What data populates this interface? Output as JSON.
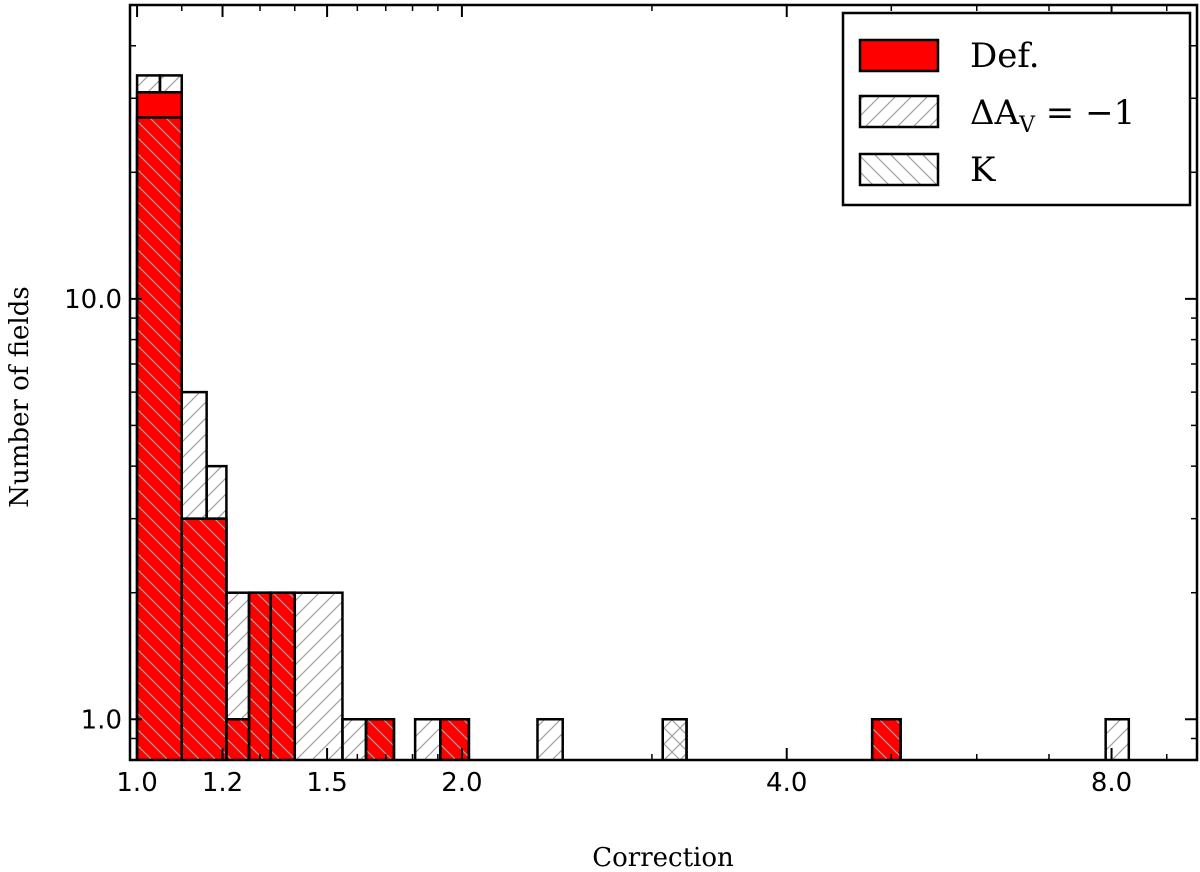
{
  "chart_data": {
    "type": "histogram",
    "xlabel": "Correction",
    "ylabel": "Number of fields",
    "x_scale": "log",
    "y_scale": "log",
    "xlim": [
      0.985,
      9.6
    ],
    "ylim": [
      0.8,
      50
    ],
    "x_ticks": [
      {
        "value": 1.0,
        "label": "1.0"
      },
      {
        "value": 1.2,
        "label": "1.2"
      },
      {
        "value": 1.5,
        "label": "1.5"
      },
      {
        "value": 2.0,
        "label": "2.0"
      },
      {
        "value": 4.0,
        "label": "4.0"
      },
      {
        "value": 8.0,
        "label": "8.0"
      }
    ],
    "y_ticks": [
      {
        "value": 1.0,
        "label": "1.0"
      },
      {
        "value": 10.0,
        "label": "10.0"
      }
    ],
    "legend": {
      "position": "top-right"
    },
    "series": [
      {
        "name": "Def.",
        "style": "filled",
        "color": "#ff0000",
        "bins": [
          {
            "x0": 1.0,
            "x1": 1.1,
            "count": 31
          },
          {
            "x0": 1.1,
            "x1": 1.21,
            "count": 3
          },
          {
            "x0": 1.21,
            "x1": 1.27,
            "count": 1
          },
          {
            "x0": 1.27,
            "x1": 1.33,
            "count": 2
          },
          {
            "x0": 1.33,
            "x1": 1.4,
            "count": 2
          },
          {
            "x0": 1.63,
            "x1": 1.73,
            "count": 1
          },
          {
            "x0": 1.91,
            "x1": 2.03,
            "count": 1
          },
          {
            "x0": 4.8,
            "x1": 5.1,
            "count": 1
          }
        ]
      },
      {
        "name": "ΔA",
        "name_sub": "V",
        "name_tail": " = −1",
        "style": "hatched /",
        "color": "#000000",
        "bins": [
          {
            "x0": 1.0,
            "x1": 1.05,
            "count": 34
          },
          {
            "x0": 1.05,
            "x1": 1.1,
            "count": 34
          },
          {
            "x0": 1.1,
            "x1": 1.16,
            "count": 6
          },
          {
            "x0": 1.16,
            "x1": 1.21,
            "count": 4
          },
          {
            "x0": 1.21,
            "x1": 1.27,
            "count": 2
          },
          {
            "x0": 1.27,
            "x1": 1.33,
            "count": 2
          },
          {
            "x0": 1.33,
            "x1": 1.4,
            "count": 2
          },
          {
            "x0": 1.4,
            "x1": 1.55,
            "count": 2
          },
          {
            "x0": 1.55,
            "x1": 1.63,
            "count": 1
          },
          {
            "x0": 1.81,
            "x1": 1.91,
            "count": 1
          },
          {
            "x0": 2.35,
            "x1": 2.48,
            "count": 1
          },
          {
            "x0": 3.07,
            "x1": 3.23,
            "count": 1
          },
          {
            "x0": 7.9,
            "x1": 8.3,
            "count": 1
          }
        ]
      },
      {
        "name": "K",
        "style": "hatched \\",
        "color": "#000000",
        "bins": [
          {
            "x0": 1.0,
            "x1": 1.1,
            "count": 27
          },
          {
            "x0": 1.1,
            "x1": 1.21,
            "count": 3
          },
          {
            "x0": 1.21,
            "x1": 1.27,
            "count": 1
          },
          {
            "x0": 1.27,
            "x1": 1.33,
            "count": 2
          },
          {
            "x0": 1.33,
            "x1": 1.4,
            "count": 2
          },
          {
            "x0": 1.63,
            "x1": 1.73,
            "count": 1
          },
          {
            "x0": 1.91,
            "x1": 2.03,
            "count": 1
          },
          {
            "x0": 3.07,
            "x1": 3.23,
            "count": 1
          },
          {
            "x0": 4.8,
            "x1": 5.1,
            "count": 1
          }
        ]
      }
    ]
  }
}
